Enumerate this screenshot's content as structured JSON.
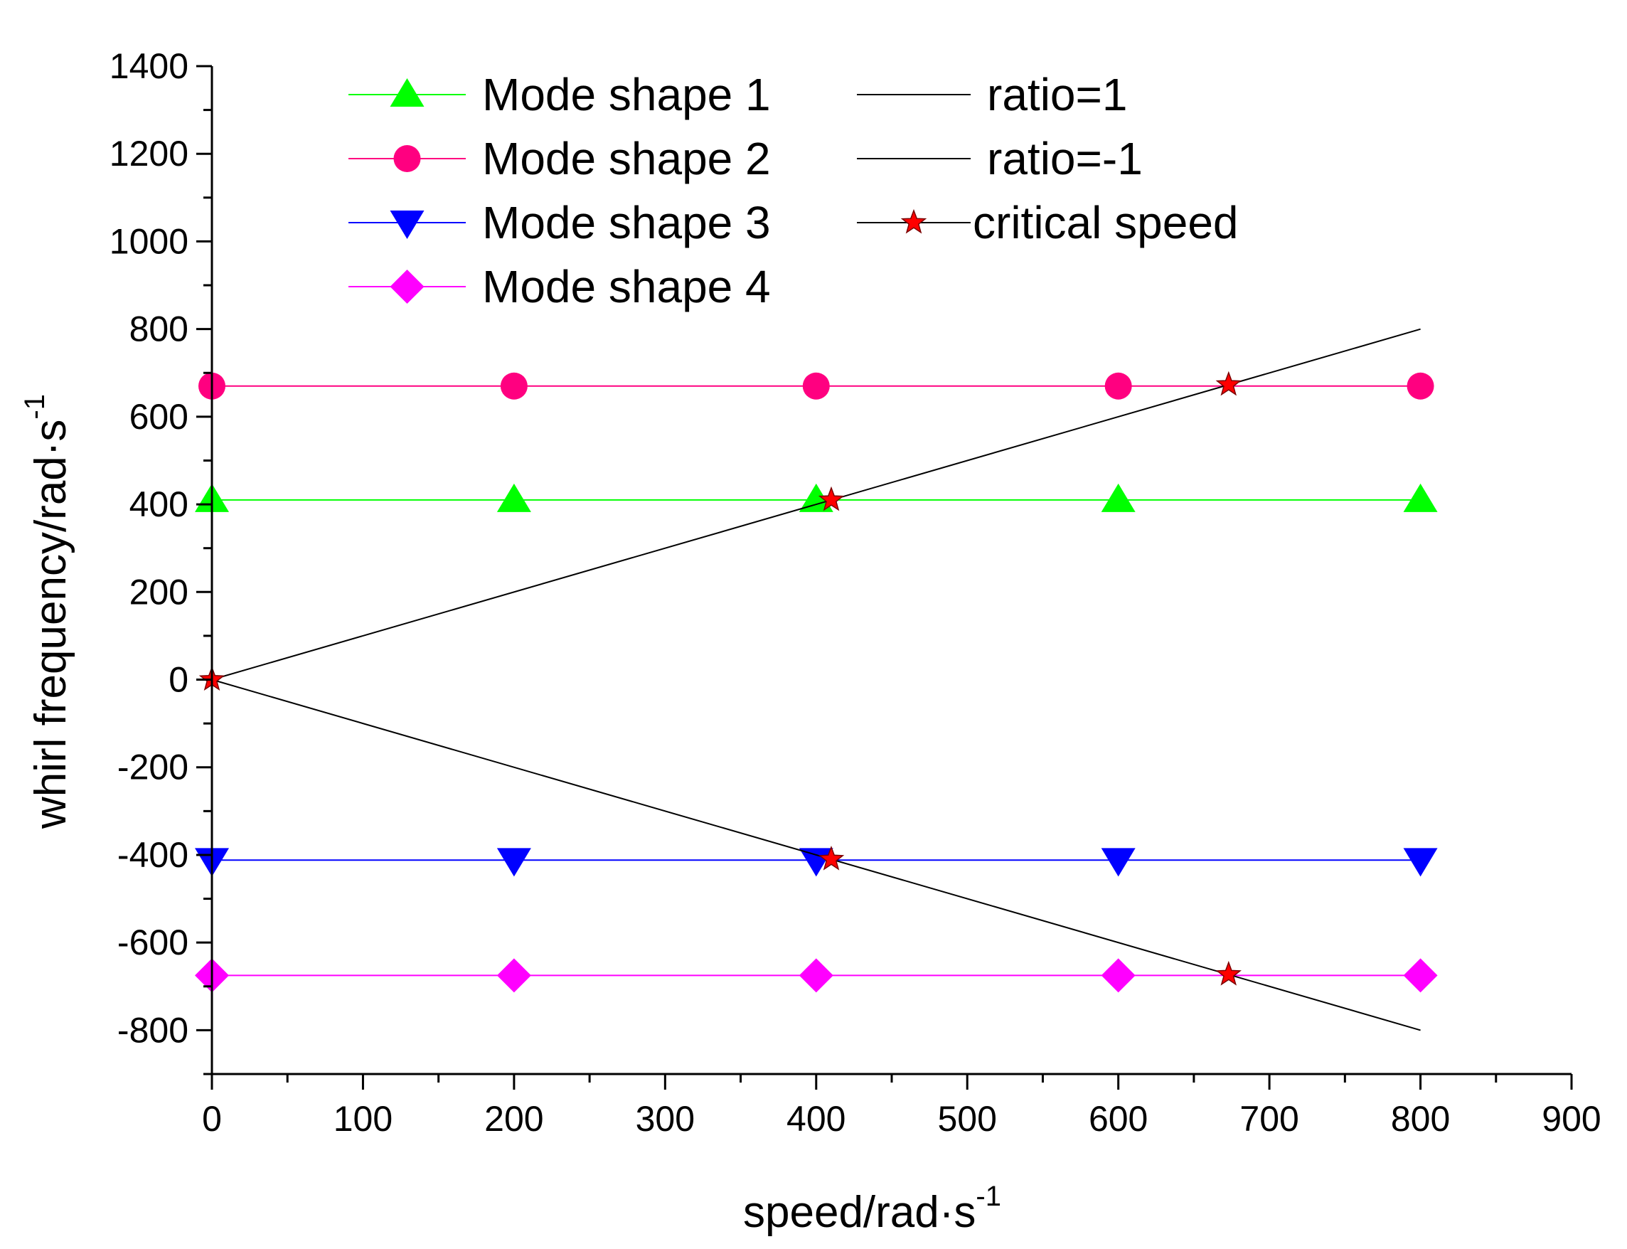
{
  "chart_data": {
    "type": "line",
    "title": "",
    "xlabel": "speed/rad·s",
    "xlabel_sup": "-1",
    "ylabel": "whirl frequency/rad·s",
    "ylabel_sup": "-1",
    "xlim": [
      0,
      900
    ],
    "ylim": [
      -900,
      1400
    ],
    "xticks": [
      0,
      100,
      200,
      300,
      400,
      500,
      600,
      700,
      800,
      900
    ],
    "yticks": [
      -800,
      -600,
      -400,
      -200,
      0,
      200,
      400,
      600,
      800,
      1000,
      1200,
      1400
    ],
    "grid": false,
    "legend_position": "top",
    "series": [
      {
        "name": "Mode shape 1",
        "color": "#00ff00",
        "marker": "triangle-up",
        "x": [
          0,
          200,
          400,
          600,
          800
        ],
        "y": [
          410,
          410,
          410,
          410,
          410
        ]
      },
      {
        "name": "Mode shape 2",
        "color": "#ff0080",
        "marker": "circle",
        "x": [
          0,
          200,
          400,
          600,
          800
        ],
        "y": [
          670,
          670,
          670,
          670,
          670
        ]
      },
      {
        "name": "Mode shape 3",
        "color": "#0000ff",
        "marker": "triangle-down",
        "x": [
          0,
          200,
          400,
          600,
          800
        ],
        "y": [
          -412,
          -412,
          -412,
          -412,
          -412
        ]
      },
      {
        "name": "Mode shape 4",
        "color": "#ff00ff",
        "marker": "diamond",
        "x": [
          0,
          200,
          400,
          600,
          800
        ],
        "y": [
          -675,
          -675,
          -675,
          -675,
          -675
        ]
      },
      {
        "name": "ratio=1",
        "color": "#000000",
        "marker": "none",
        "x": [
          0,
          800
        ],
        "y": [
          0,
          800
        ]
      },
      {
        "name": "ratio=-1",
        "color": "#000000",
        "marker": "none",
        "x": [
          0,
          800
        ],
        "y": [
          0,
          -800
        ]
      },
      {
        "name": "critical speed",
        "color": "#ff0000",
        "marker": "star",
        "line": false,
        "x": [
          0,
          410,
          410,
          673,
          673
        ],
        "y": [
          0,
          410,
          -410,
          673,
          -673
        ]
      }
    ]
  }
}
